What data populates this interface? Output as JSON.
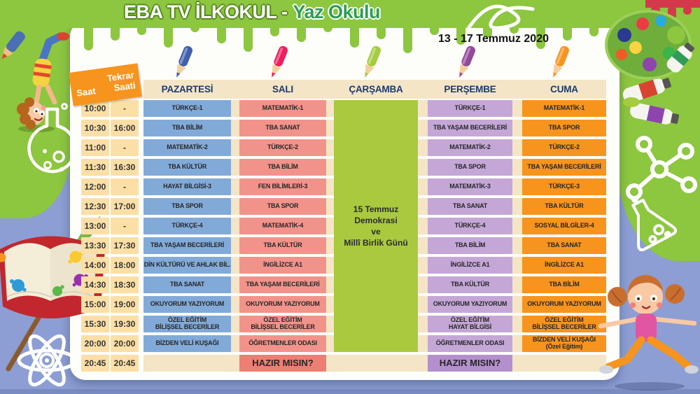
{
  "header": {
    "title_main": "EBA TV İLKOKUL -",
    "title_sub": "Yaz Okulu",
    "date_range": "13 - 17 Temmuz 2020"
  },
  "corner": {
    "saat": "Saat",
    "tekrar_saati": "Tekrar\nSaati"
  },
  "days": [
    {
      "key": "pazartesi",
      "label": "PAZARTESİ",
      "cell_color": "#82aad8",
      "pencil_color": "#3f5fae"
    },
    {
      "key": "sali",
      "label": "SALI",
      "cell_color": "#f2938b",
      "pencil_color": "#ec1e5c"
    },
    {
      "key": "carsamba",
      "label": "ÇARŞAMBA",
      "cell_color": "#a9c93f",
      "pencil_color": "#a4cc3c"
    },
    {
      "key": "persembe",
      "label": "PERŞEMBE",
      "cell_color": "#c4a7d7",
      "pencil_color": "#94499c"
    },
    {
      "key": "cuma",
      "label": "CUMA",
      "cell_color": "#f7941e",
      "pencil_color": "#f7941e"
    }
  ],
  "wednesday_event": "15 Temmuz\nDemokrasi\nve\nMillî Birlik Günü",
  "highlight_colors": {
    "sali": "#ee7e73",
    "persembe": "#b48fce"
  },
  "schedule": {
    "rows": [
      {
        "saat": "10:00",
        "tekrar": "-",
        "pazartesi": "TÜRKÇE-1",
        "sali": "MATEMATİK-1",
        "persembe": "TÜRKÇE-1",
        "cuma": "MATEMATİK-1"
      },
      {
        "saat": "10:30",
        "tekrar": "16:00",
        "pazartesi": "TBA BİLİM",
        "sali": "TBA SANAT",
        "persembe": "TBA YAŞAM BECERİLERİ",
        "cuma": "TBA SPOR"
      },
      {
        "saat": "11:00",
        "tekrar": "-",
        "pazartesi": "MATEMATİK-2",
        "sali": "TÜRKÇE-2",
        "persembe": "MATEMATİK-2",
        "cuma": "TÜRKÇE-2"
      },
      {
        "saat": "11:30",
        "tekrar": "16:30",
        "pazartesi": "TBA KÜLTÜR",
        "sali": "TBA BİLİM",
        "persembe": "TBA SPOR",
        "cuma": "TBA YAŞAM BECERİLERİ"
      },
      {
        "saat": "12:00",
        "tekrar": "-",
        "pazartesi": "HAYAT BİLGİSİ-3",
        "sali": "FEN BİLİMLERİ-3",
        "persembe": "MATEMATİK-3",
        "cuma": "TÜRKÇE-3"
      },
      {
        "saat": "12:30",
        "tekrar": "17:00",
        "pazartesi": "TBA SPOR",
        "sali": "TBA SPOR",
        "persembe": "TBA SANAT",
        "cuma": "TBA KÜLTÜR"
      },
      {
        "saat": "13:00",
        "tekrar": "-",
        "pazartesi": "TÜRKÇE-4",
        "sali": "MATEMATİK-4",
        "persembe": "TÜRKÇE-4",
        "cuma": "SOSYAL BİLGİLER-4"
      },
      {
        "saat": "13:30",
        "tekrar": "17:30",
        "pazartesi": "TBA YAŞAM BECERİLERİ",
        "sali": "TBA KÜLTÜR",
        "persembe": "TBA BİLİM",
        "cuma": "TBA SANAT"
      },
      {
        "saat": "14:00",
        "tekrar": "18:00",
        "pazartesi": "DİN KÜLTÜRÜ VE AHLAK BİL.",
        "sali": "İNGİLİZCE A1",
        "persembe": "İNGİLİZCE A1",
        "cuma": "İNGİLİZCE A1"
      },
      {
        "saat": "14:30",
        "tekrar": "18:30",
        "pazartesi": "TBA SANAT",
        "sali": "TBA YAŞAM BECERİLERİ",
        "persembe": "TBA KÜLTÜR",
        "cuma": "TBA BİLİM"
      },
      {
        "saat": "15:00",
        "tekrar": "19:00",
        "pazartesi": "OKUYORUM YAZIYORUM",
        "sali": "OKUYORUM YAZIYORUM",
        "persembe": "OKUYORUM YAZIYORUM",
        "cuma": "OKUYORUM YAZIYORUM"
      },
      {
        "saat": "15:30",
        "tekrar": "19:30",
        "pazartesi": "ÖZEL EĞİTİM\nBİLİŞSEL BECERİLER",
        "sali": "ÖZEL EĞİTİM\nBİLİŞSEL BECERİLER",
        "persembe": "ÖZEL EĞİTİM\nHAYAT BİLGİSİ",
        "cuma": "ÖZEL EĞİTİM\nBİLİŞSEL BECERİLER"
      },
      {
        "saat": "20:00",
        "tekrar": "20:00",
        "pazartesi": "BİZDEN VELİ KUŞAĞI",
        "sali": "ÖĞRETMENLER ODASI",
        "persembe": "ÖĞRETMENLER ODASI",
        "cuma": "BİZDEN VELİ KUŞAĞI\n(Özel Eğitim)"
      },
      {
        "saat": "20:45",
        "tekrar": "20:45",
        "pazartesi": "",
        "sali": "HAZIR MISIN?",
        "persembe": "HAZIR MISIN?",
        "cuma": "",
        "highlight": true
      }
    ]
  },
  "decorations": [
    "handstand-boy-illustration",
    "round-flask-icon",
    "paintbrush-icon",
    "open-book-illustration",
    "atom-icon",
    "paint-palette-icon",
    "paint-tubes-icon",
    "molecule-icon",
    "erlenmeyer-flask-icon",
    "exercising-girl-illustration",
    "red-paint-drip",
    "white-swirl-doodle",
    "blue-crayon-icon",
    "pencil-icon"
  ]
}
